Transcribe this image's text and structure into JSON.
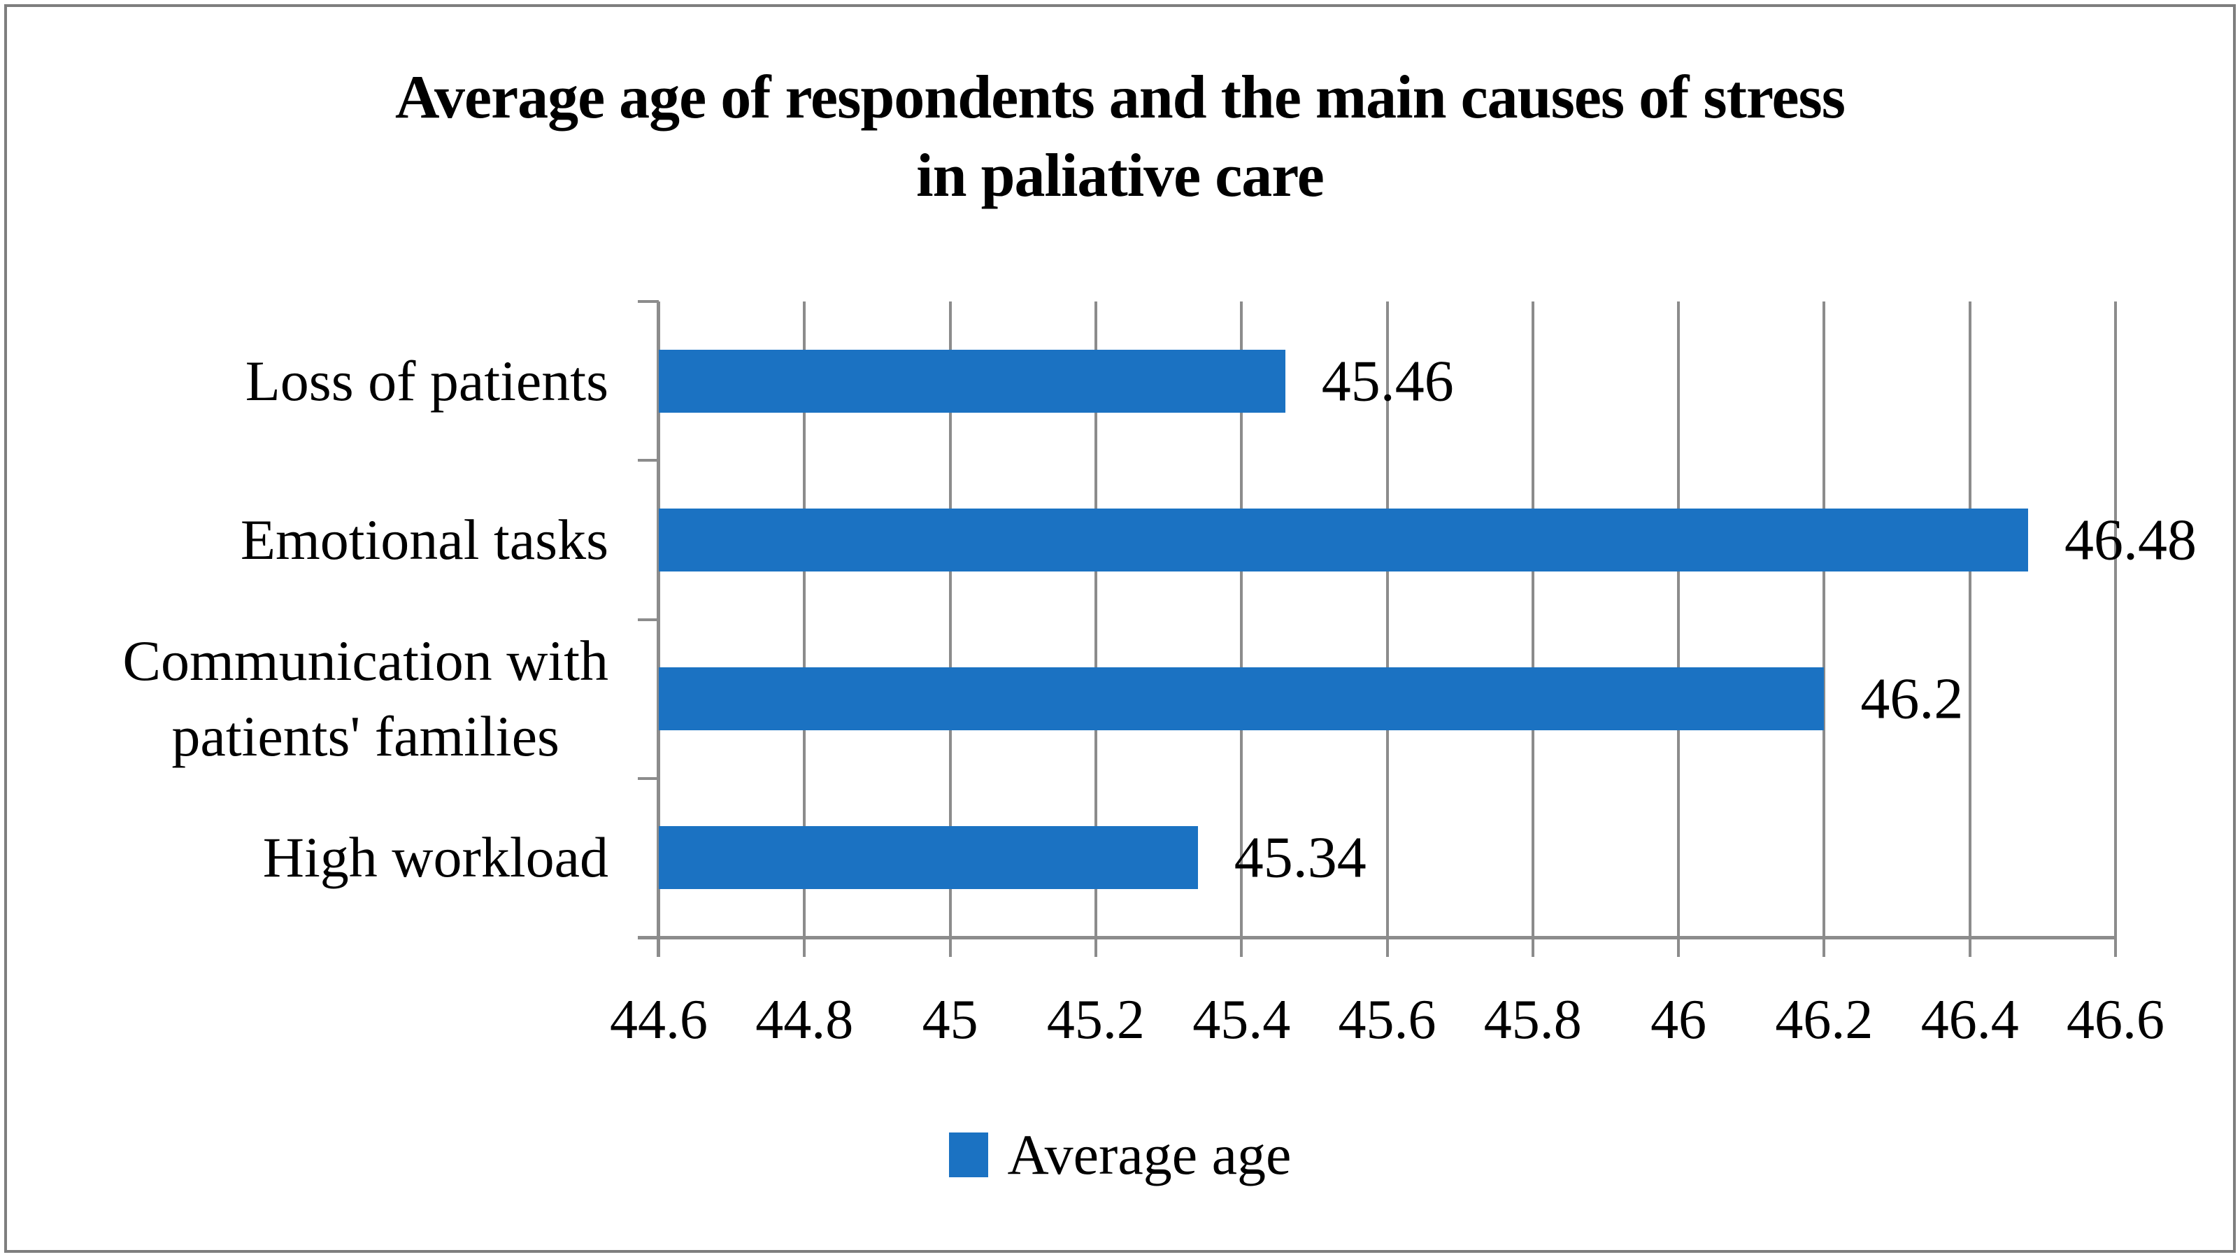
{
  "title": {
    "line1": "Average age of respondents and the main causes of stress",
    "line2": "in paliative care"
  },
  "legend": {
    "label": "Average age"
  },
  "chart_data": {
    "type": "bar",
    "orientation": "horizontal",
    "title": "Average age of respondents and the main causes of stress in paliative care",
    "categories": [
      "Loss of patients",
      "Emotional tasks",
      "Communication with patients' families",
      "High workload"
    ],
    "category_lines": [
      [
        "Loss of patients"
      ],
      [
        "Emotional tasks"
      ],
      [
        "Communication with",
        "patients' families"
      ],
      [
        "High workload"
      ]
    ],
    "series": [
      {
        "name": "Average age",
        "values": [
          45.46,
          46.48,
          46.2,
          45.34
        ]
      }
    ],
    "value_labels": [
      "45.46",
      "46.48",
      "46.2",
      "45.34"
    ],
    "xlabel": "",
    "ylabel": "",
    "xlim": [
      44.6,
      46.6
    ],
    "x_tick_values": [
      44.6,
      44.8,
      45,
      45.2,
      45.4,
      45.6,
      45.8,
      46,
      46.2,
      46.4,
      46.6
    ],
    "x_tick_labels": [
      "44.6",
      "44.8",
      "45",
      "45.2",
      "45.4",
      "45.6",
      "45.8",
      "46",
      "46.2",
      "46.4",
      "46.6"
    ],
    "grid": true,
    "legend_position": "bottom",
    "colors": {
      "bar": "#1B72C2",
      "axis": "#8C8C8C",
      "frame": "#7E7E7E",
      "text": "#000000",
      "background": "#FFFFFF"
    }
  }
}
